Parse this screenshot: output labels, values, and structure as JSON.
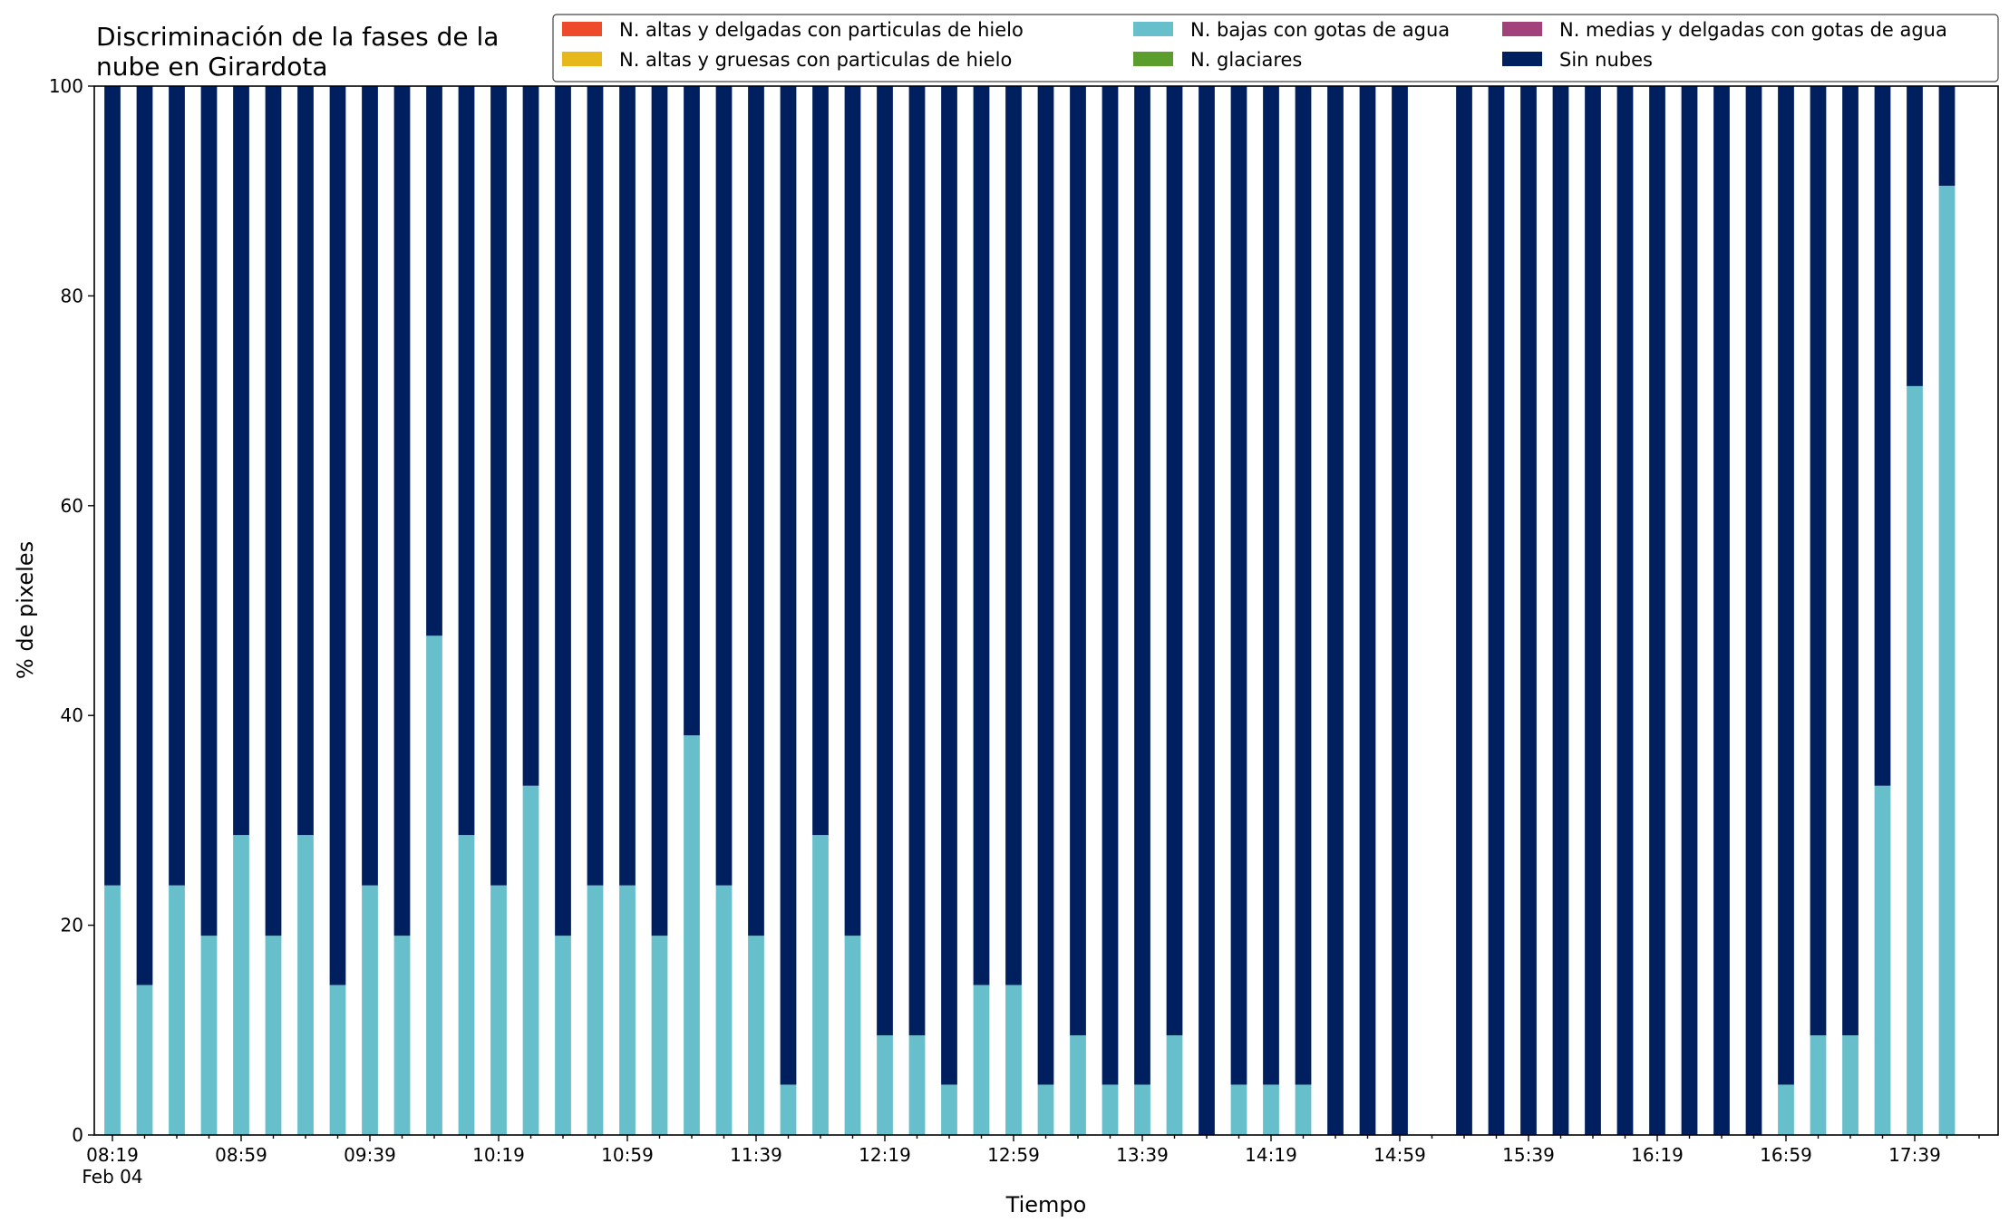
{
  "chart_data": {
    "type": "bar",
    "stacked": true,
    "title_lines": [
      "Discriminación de la fases de la",
      "nube en Girardota"
    ],
    "xlabel": "Tiempo",
    "ylabel": "% de pixeles",
    "ylim": [
      0,
      100
    ],
    "yticks": [
      0,
      20,
      40,
      60,
      80,
      100
    ],
    "grid": false,
    "legend_position": "top-right",
    "x": [
      "08:19",
      "08:29",
      "08:39",
      "08:49",
      "08:59",
      "09:09",
      "09:19",
      "09:29",
      "09:39",
      "09:49",
      "09:59",
      "10:09",
      "10:19",
      "10:29",
      "10:39",
      "10:49",
      "10:59",
      "11:09",
      "11:19",
      "11:29",
      "11:39",
      "11:49",
      "11:59",
      "12:09",
      "12:19",
      "12:29",
      "12:39",
      "12:49",
      "12:59",
      "13:09",
      "13:19",
      "13:29",
      "13:39",
      "13:49",
      "13:59",
      "14:09",
      "14:19",
      "14:29",
      "14:39",
      "14:49",
      "14:59",
      "15:09",
      "15:19",
      "15:29",
      "15:39",
      "15:49",
      "15:59",
      "16:09",
      "16:19",
      "16:29",
      "16:39",
      "16:49",
      "16:59",
      "17:09",
      "17:19",
      "17:29",
      "17:39",
      "17:49"
    ],
    "xtick_labels": [
      {
        "time": "08:19",
        "date": "Feb 04"
      },
      {
        "time": "08:59",
        "date": ""
      },
      {
        "time": "09:39",
        "date": ""
      },
      {
        "time": "10:19",
        "date": ""
      },
      {
        "time": "10:59",
        "date": ""
      },
      {
        "time": "11:39",
        "date": ""
      },
      {
        "time": "12:19",
        "date": ""
      },
      {
        "time": "12:59",
        "date": ""
      },
      {
        "time": "13:39",
        "date": ""
      },
      {
        "time": "14:19",
        "date": ""
      },
      {
        "time": "14:59",
        "date": ""
      },
      {
        "time": "15:39",
        "date": ""
      },
      {
        "time": "16:19",
        "date": ""
      },
      {
        "time": "16:59",
        "date": ""
      },
      {
        "time": "17:39",
        "date": ""
      }
    ],
    "series": [
      {
        "name": "N. altas y delgadas con particulas de hielo",
        "color": "#ee4a2c",
        "values": [
          0,
          0,
          0,
          0,
          0,
          0,
          0,
          0,
          0,
          0,
          0,
          0,
          0,
          0,
          0,
          0,
          0,
          0,
          0,
          0,
          0,
          0,
          0,
          0,
          0,
          0,
          0,
          0,
          0,
          0,
          0,
          0,
          0,
          0,
          0,
          0,
          0,
          0,
          0,
          0,
          0,
          0,
          0,
          0,
          0,
          0,
          0,
          0,
          0,
          0,
          0,
          0,
          0,
          0,
          0,
          0,
          0,
          0
        ]
      },
      {
        "name": "N. altas y gruesas con particulas de hielo",
        "color": "#e6b81c",
        "values": [
          0,
          0,
          0,
          0,
          0,
          0,
          0,
          0,
          0,
          0,
          0,
          0,
          0,
          0,
          0,
          0,
          0,
          0,
          0,
          0,
          0,
          0,
          0,
          0,
          0,
          0,
          0,
          0,
          0,
          0,
          0,
          0,
          0,
          0,
          0,
          0,
          0,
          0,
          0,
          0,
          0,
          0,
          0,
          0,
          0,
          0,
          0,
          0,
          0,
          0,
          0,
          0,
          0,
          0,
          0,
          0,
          0,
          0
        ]
      },
      {
        "name": "N. bajas con gotas de agua",
        "color": "#66bfca",
        "values": [
          23.8,
          14.3,
          23.8,
          19.0,
          28.6,
          19.0,
          28.6,
          14.3,
          23.8,
          19.0,
          47.6,
          28.6,
          23.8,
          33.3,
          19.0,
          23.8,
          23.8,
          19.0,
          38.1,
          23.8,
          19.0,
          4.8,
          28.6,
          19.0,
          9.5,
          9.5,
          4.8,
          14.3,
          14.3,
          4.8,
          9.5,
          4.8,
          4.8,
          9.5,
          0,
          4.8,
          4.8,
          4.8,
          0,
          0,
          0,
          null,
          0,
          0,
          0,
          0,
          0,
          0,
          0,
          0,
          0,
          0,
          4.8,
          9.5,
          9.5,
          33.3,
          71.4,
          90.5
        ]
      },
      {
        "name": "N. glaciares",
        "color": "#5c9e2e",
        "values": [
          0,
          0,
          0,
          0,
          0,
          0,
          0,
          0,
          0,
          0,
          0,
          0,
          0,
          0,
          0,
          0,
          0,
          0,
          0,
          0,
          0,
          0,
          0,
          0,
          0,
          0,
          0,
          0,
          0,
          0,
          0,
          0,
          0,
          0,
          0,
          0,
          0,
          0,
          0,
          0,
          0,
          0,
          0,
          0,
          0,
          0,
          0,
          0,
          0,
          0,
          0,
          0,
          0,
          0,
          0,
          0,
          0,
          0
        ]
      },
      {
        "name": "N. medias y delgadas con gotas de agua",
        "color": "#a1437a",
        "values": [
          0,
          0,
          0,
          0,
          0,
          0,
          0,
          0,
          0,
          0,
          0,
          0,
          0,
          0,
          0,
          0,
          0,
          0,
          0,
          0,
          0,
          0,
          0,
          0,
          0,
          0,
          0,
          0,
          0,
          0,
          0,
          0,
          0,
          0,
          0,
          0,
          0,
          0,
          0,
          0,
          0,
          0,
          0,
          0,
          0,
          0,
          0,
          0,
          0,
          0,
          0,
          0,
          0,
          0,
          0,
          0,
          0,
          0
        ]
      },
      {
        "name": "Sin nubes",
        "color": "#001f5f",
        "values": [
          76.2,
          85.7,
          76.2,
          81.0,
          71.4,
          81.0,
          71.4,
          85.7,
          76.2,
          81.0,
          52.4,
          71.4,
          76.2,
          66.7,
          81.0,
          76.2,
          76.2,
          81.0,
          61.9,
          76.2,
          81.0,
          95.2,
          71.4,
          81.0,
          90.5,
          90.5,
          95.2,
          85.7,
          85.7,
          95.2,
          90.5,
          95.2,
          95.2,
          90.5,
          100,
          95.2,
          95.2,
          95.2,
          100,
          100,
          100,
          null,
          100,
          100,
          100,
          100,
          100,
          100,
          100,
          100,
          100,
          100,
          95.2,
          90.5,
          90.5,
          66.7,
          28.6,
          9.5
        ]
      }
    ]
  }
}
